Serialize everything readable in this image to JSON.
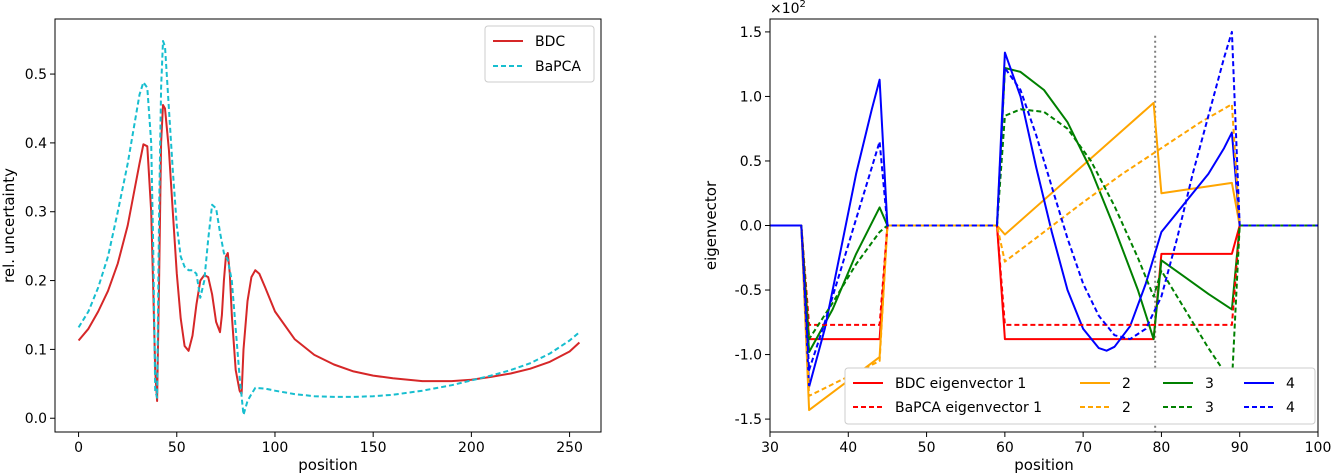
{
  "chart_data": [
    {
      "type": "line",
      "xlabel": "position",
      "ylabel": "rel. uncertainty",
      "xlim": [
        -12,
        266
      ],
      "ylim": [
        -0.02,
        0.58
      ],
      "xticks": [
        0,
        50,
        100,
        150,
        200,
        250
      ],
      "yticks": [
        0.0,
        0.1,
        0.2,
        0.3,
        0.4,
        0.5
      ],
      "legend_position": "top-right",
      "series": [
        {
          "name": "BDC",
          "color": "#d62728",
          "dash": "solid",
          "x": [
            0,
            5,
            10,
            15,
            20,
            25,
            28,
            31,
            33,
            35,
            37,
            38,
            39,
            40,
            41,
            42,
            43,
            44,
            46,
            48,
            50,
            52,
            54,
            56,
            58,
            60,
            62,
            64,
            66,
            68,
            70,
            72,
            73,
            74,
            75,
            76,
            77,
            78,
            80,
            82,
            83,
            84,
            86,
            88,
            90,
            92,
            95,
            100,
            110,
            120,
            130,
            140,
            150,
            160,
            175,
            190,
            200,
            210,
            220,
            230,
            240,
            250,
            255
          ],
          "values": [
            0.113,
            0.13,
            0.155,
            0.185,
            0.225,
            0.28,
            0.325,
            0.37,
            0.398,
            0.395,
            0.3,
            0.19,
            0.07,
            0.025,
            0.2,
            0.4,
            0.455,
            0.45,
            0.39,
            0.3,
            0.21,
            0.145,
            0.105,
            0.098,
            0.12,
            0.165,
            0.2,
            0.208,
            0.205,
            0.18,
            0.14,
            0.125,
            0.15,
            0.2,
            0.235,
            0.24,
            0.21,
            0.15,
            0.07,
            0.04,
            0.035,
            0.1,
            0.17,
            0.205,
            0.215,
            0.21,
            0.19,
            0.155,
            0.115,
            0.092,
            0.078,
            0.068,
            0.062,
            0.058,
            0.054,
            0.054,
            0.056,
            0.06,
            0.065,
            0.072,
            0.082,
            0.097,
            0.11
          ]
        },
        {
          "name": "BaPCA",
          "color": "#17becf",
          "dash": "dashed",
          "x": [
            0,
            5,
            10,
            15,
            20,
            25,
            28,
            31,
            33,
            35,
            37,
            38,
            39,
            40,
            41,
            42,
            43,
            44,
            46,
            48,
            50,
            52,
            54,
            56,
            58,
            60,
            62,
            64,
            66,
            68,
            70,
            72,
            74,
            76,
            78,
            80,
            82,
            84,
            86,
            88,
            90,
            95,
            100,
            110,
            120,
            130,
            140,
            150,
            160,
            175,
            190,
            200,
            210,
            220,
            230,
            240,
            250,
            255
          ],
          "values": [
            0.132,
            0.155,
            0.19,
            0.235,
            0.3,
            0.37,
            0.42,
            0.47,
            0.488,
            0.48,
            0.4,
            0.25,
            0.04,
            0.03,
            0.3,
            0.48,
            0.548,
            0.54,
            0.45,
            0.36,
            0.28,
            0.235,
            0.22,
            0.215,
            0.215,
            0.21,
            0.175,
            0.2,
            0.26,
            0.31,
            0.305,
            0.27,
            0.24,
            0.23,
            0.2,
            0.13,
            0.06,
            0.005,
            0.025,
            0.035,
            0.044,
            0.043,
            0.04,
            0.035,
            0.032,
            0.031,
            0.031,
            0.032,
            0.034,
            0.04,
            0.048,
            0.055,
            0.062,
            0.07,
            0.08,
            0.094,
            0.113,
            0.125
          ]
        }
      ]
    },
    {
      "type": "line",
      "xlabel": "position",
      "ylabel": "eigenvector",
      "scale_label": "×10",
      "scale_exponent": "2",
      "xlim": [
        30,
        100
      ],
      "ylim": [
        -1.6,
        1.6
      ],
      "xticks": [
        30,
        40,
        50,
        60,
        70,
        80,
        90,
        100
      ],
      "yticks": [
        -1.5,
        -1.0,
        -0.5,
        0.0,
        0.5,
        1.0,
        1.5
      ],
      "vline": {
        "x": 79.2,
        "color": "#808080",
        "dash": "dotted"
      },
      "legend_position": "bottom-center",
      "legend_columns": 4,
      "series": [
        {
          "name": "BDC eigenvector 1",
          "color": "#ff0000",
          "dash": "solid",
          "x": [
            30,
            34,
            35,
            44,
            45,
            59,
            60,
            79,
            80,
            89,
            90,
            100
          ],
          "values": [
            0,
            0,
            -0.88,
            -0.88,
            0,
            0,
            -0.88,
            -0.88,
            -0.22,
            -0.22,
            0,
            0
          ]
        },
        {
          "name": "2",
          "color": "#ffa500",
          "dash": "solid",
          "x": [
            30,
            34,
            35,
            44,
            45,
            59,
            60,
            79,
            80,
            89,
            90,
            100
          ],
          "values": [
            0,
            0,
            -1.43,
            -1.02,
            0,
            0,
            -0.07,
            0.95,
            0.25,
            0.33,
            0,
            0
          ]
        },
        {
          "name": "3",
          "color": "#008000",
          "dash": "solid",
          "x": [
            30,
            34,
            35,
            38,
            41,
            44,
            45,
            59,
            60,
            62,
            65,
            68,
            71,
            74,
            77,
            79,
            80,
            83,
            86,
            89,
            90,
            100
          ],
          "values": [
            0,
            0,
            -0.98,
            -0.65,
            -0.22,
            0.14,
            0,
            0,
            1.22,
            1.19,
            1.05,
            0.8,
            0.43,
            -0.02,
            -0.5,
            -0.88,
            -0.27,
            -0.4,
            -0.53,
            -0.65,
            0,
            0
          ]
        },
        {
          "name": "4",
          "color": "#0000ff",
          "dash": "solid",
          "x": [
            30,
            34,
            35,
            37,
            39,
            41,
            43,
            44,
            45,
            59,
            60,
            62,
            64,
            66,
            68,
            70,
            72,
            73,
            74,
            76,
            78,
            79,
            80,
            82,
            84,
            86,
            88,
            89,
            90,
            100
          ],
          "values": [
            0,
            0,
            -1.25,
            -0.8,
            -0.2,
            0.4,
            0.9,
            1.13,
            0,
            0,
            1.34,
            1.0,
            0.45,
            -0.05,
            -0.5,
            -0.8,
            -0.95,
            -0.97,
            -0.94,
            -0.78,
            -0.45,
            -0.25,
            -0.05,
            0.1,
            0.25,
            0.4,
            0.6,
            0.72,
            0,
            0
          ]
        },
        {
          "name": "BaPCA eigenvector 1",
          "color": "#ff0000",
          "dash": "dashed",
          "x": [
            30,
            34,
            35,
            44,
            45,
            59,
            60,
            89,
            90,
            100
          ],
          "values": [
            0,
            0,
            -0.77,
            -0.77,
            0,
            0,
            -0.77,
            -0.77,
            0,
            0
          ]
        },
        {
          "name": "2",
          "color": "#ffa500",
          "dash": "dashed",
          "x": [
            30,
            34,
            35,
            44,
            45,
            59,
            60,
            65,
            70,
            75,
            80,
            85,
            89,
            90,
            100
          ],
          "values": [
            0,
            0,
            -1.32,
            -1.05,
            0,
            0,
            -0.28,
            -0.05,
            0.18,
            0.4,
            0.6,
            0.8,
            0.94,
            0,
            0
          ]
        },
        {
          "name": "3",
          "color": "#008000",
          "dash": "dashed",
          "x": [
            30,
            34,
            35,
            38,
            41,
            44,
            45,
            59,
            60,
            62,
            65,
            68,
            71,
            74,
            77,
            79,
            80,
            83,
            86,
            89,
            90,
            100
          ],
          "values": [
            0,
            0,
            -0.88,
            -0.6,
            -0.3,
            -0.05,
            0,
            0,
            0.85,
            0.9,
            0.88,
            0.75,
            0.5,
            0.15,
            -0.25,
            -0.55,
            -0.35,
            -0.65,
            -0.95,
            -1.22,
            0,
            0
          ]
        },
        {
          "name": "4",
          "color": "#0000ff",
          "dash": "dashed",
          "x": [
            30,
            34,
            35,
            37,
            39,
            41,
            43,
            44,
            45,
            59,
            60,
            62,
            64,
            66,
            68,
            70,
            72,
            74,
            76,
            78,
            80,
            82,
            84,
            86,
            88,
            89,
            90,
            100
          ],
          "values": [
            0,
            0,
            -1.12,
            -0.75,
            -0.35,
            0.05,
            0.45,
            0.65,
            0,
            0,
            1.22,
            1.05,
            0.7,
            0.3,
            -0.1,
            -0.45,
            -0.7,
            -0.85,
            -0.88,
            -0.8,
            -0.55,
            -0.1,
            0.4,
            0.85,
            1.3,
            1.5,
            0,
            0
          ]
        }
      ]
    }
  ]
}
